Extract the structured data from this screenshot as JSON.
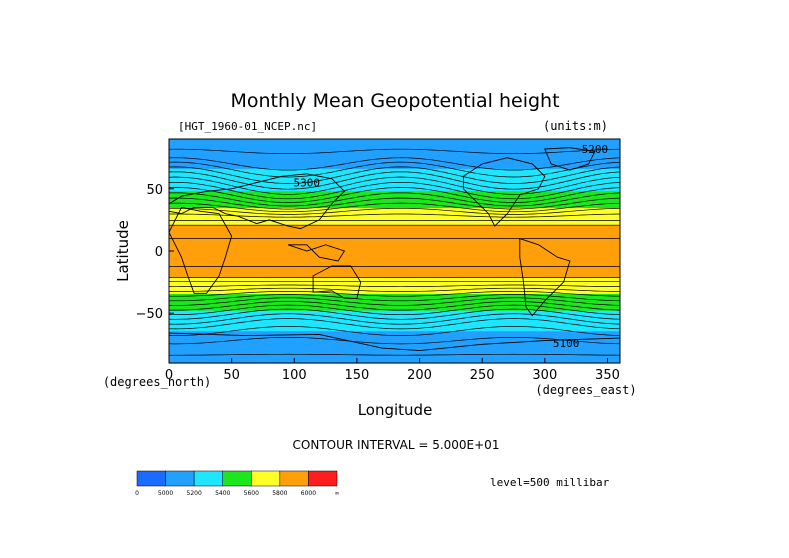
{
  "chart_data": {
    "type": "heatmap",
    "title": "Monthly Mean Geopotential height",
    "file_label": "[HGT_1960-01_NCEP.nc]",
    "units_label": "(units:m)",
    "xlabel": "Longitude",
    "ylabel": "Latitude",
    "x_unit_label": "(degrees_east)",
    "y_unit_label": "(degrees_north)",
    "xlim": [
      0,
      360
    ],
    "ylim": [
      -90,
      90
    ],
    "x_ticks": [
      0,
      50,
      100,
      150,
      200,
      250,
      300,
      350
    ],
    "y_ticks": [
      -50,
      0,
      50
    ],
    "contour_interval_text": "CONTOUR INTERVAL = 5.000E+01",
    "level_text": "level=500 millibar",
    "contour_labels": [
      {
        "text": "5200",
        "lon": 340,
        "lat": 82
      },
      {
        "text": "5300",
        "lon": 110,
        "lat": 55
      },
      {
        "text": "5100",
        "lon": 317,
        "lat": -74
      }
    ],
    "color_bins": [
      {
        "min": 0,
        "max": 5000,
        "color": "#1a6bff"
      },
      {
        "min": 5000,
        "max": 5200,
        "color": "#21a0ff"
      },
      {
        "min": 5200,
        "max": 5400,
        "color": "#1ee6ff"
      },
      {
        "min": 5400,
        "max": 5600,
        "color": "#1ee61e"
      },
      {
        "min": 5600,
        "max": 5800,
        "color": "#ffff28"
      },
      {
        "min": 5800,
        "max": 6000,
        "color": "#ff9f0a"
      },
      {
        "min": 6000,
        "max": 100000,
        "color": "#ff1e1e"
      }
    ],
    "colorbar_tick_labels": [
      "0",
      "5000",
      "5200",
      "5400",
      "5600",
      "5800",
      "6000",
      "∞"
    ],
    "latitude_profile": {
      "lat": [
        -90,
        -80,
        -70,
        -60,
        -50,
        -40,
        -30,
        -20,
        -10,
        0,
        10,
        20,
        30,
        40,
        50,
        60,
        70,
        80,
        90
      ],
      "height_m": [
        5080,
        5110,
        5160,
        5230,
        5360,
        5510,
        5670,
        5820,
        5860,
        5860,
        5850,
        5810,
        5680,
        5520,
        5380,
        5260,
        5150,
        5100,
        5080
      ]
    },
    "grid": false
  }
}
